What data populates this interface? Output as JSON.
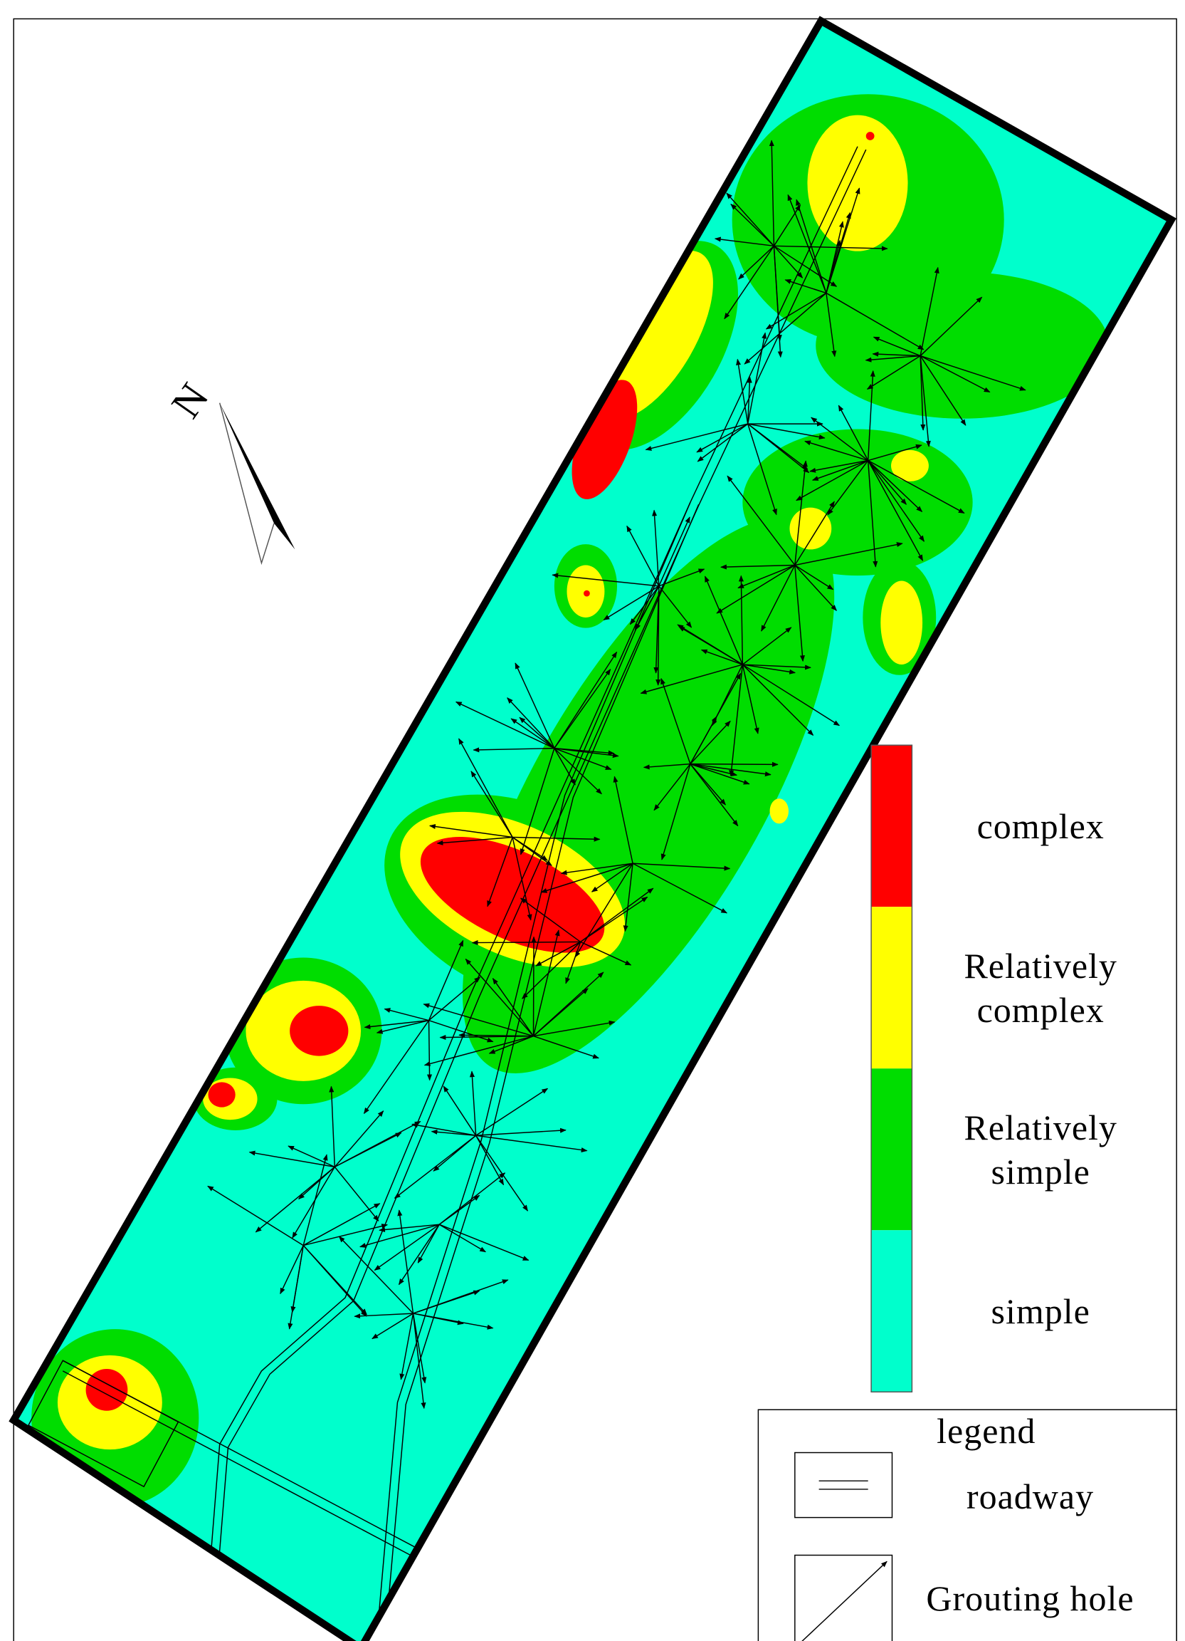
{
  "map": {
    "north_label": "N",
    "color_scale": [
      {
        "label": "complex",
        "color": "#ff0000"
      },
      {
        "label": "Relatively complex",
        "color": "#ffff00"
      },
      {
        "label": "Relatively simple",
        "color": "#00dd00"
      },
      {
        "label": "simple",
        "color": "#00ffcc"
      }
    ],
    "legend": {
      "title": "legend",
      "items": [
        "roadway",
        "Grouting hole"
      ]
    }
  }
}
